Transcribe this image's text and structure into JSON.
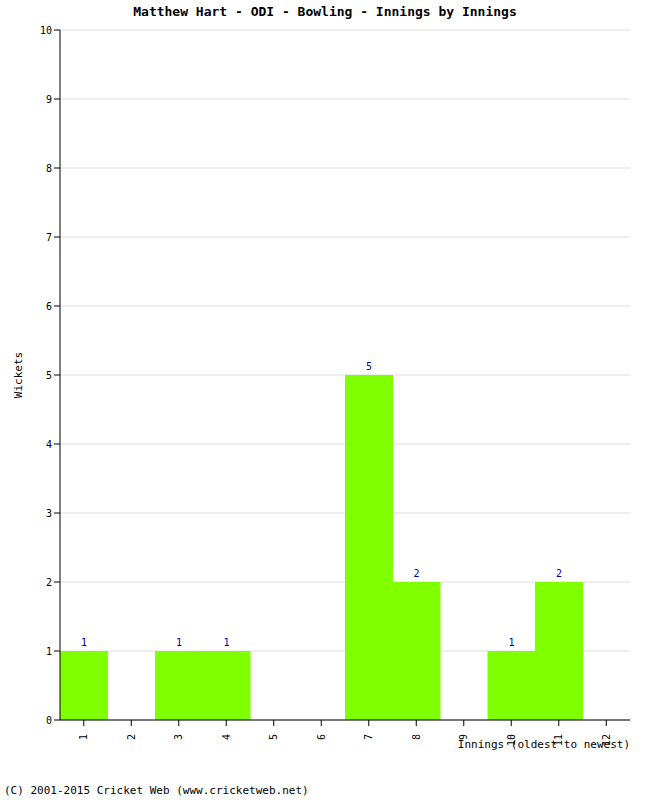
{
  "chart_data": {
    "type": "bar",
    "title": "Matthew Hart - ODI - Bowling - Innings by Innings",
    "x_label": "Innings (oldest to newest)",
    "y_label": "Wickets",
    "annotations": [
      "(C) 2001-2015 Cricket Web (www.cricketweb.net)"
    ],
    "categories": [
      "1",
      "2",
      "3",
      "4",
      "5",
      "6",
      "7",
      "8",
      "9",
      "10",
      "11",
      "12"
    ],
    "values": [
      1,
      0,
      1,
      1,
      0,
      0,
      5,
      2,
      0,
      1,
      2,
      0
    ],
    "color": "#80ff00",
    "ylim": [
      0,
      10
    ],
    "yticks": [
      0,
      1,
      2,
      3,
      4,
      5,
      6,
      7,
      8,
      9,
      10
    ],
    "grid": true,
    "data_labels": true
  }
}
